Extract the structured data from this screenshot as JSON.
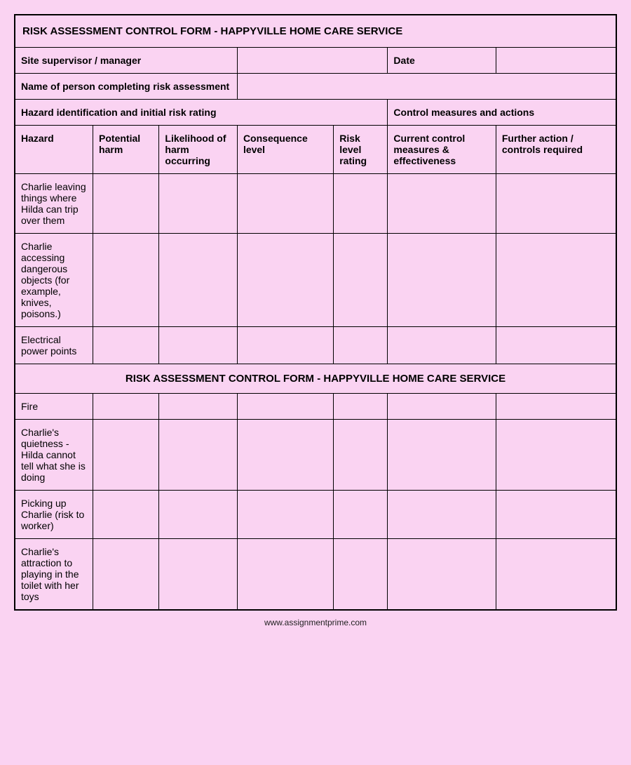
{
  "form_title": "RISK ASSESSMENT CONTROL FORM - HAPPYVILLE HOME CARE SERVICE",
  "fields": {
    "supervisor_label": "Site supervisor / manager",
    "supervisor_value": "",
    "date_label": "Date",
    "date_value": "",
    "completer_label": "Name of person completing risk assessment",
    "completer_value": ""
  },
  "section_headers": {
    "left": "Hazard identification and initial risk rating",
    "right": "Control measures and actions"
  },
  "columns": {
    "hazard": "Hazard",
    "potential_harm": "Potential harm",
    "likelihood": "Likelihood of harm occurring",
    "consequence": "Consequence level",
    "risk_level": "Risk level rating",
    "current_controls": "Current control measures & effectiveness",
    "further_action": "Further action / controls required"
  },
  "rows1": [
    {
      "hazard": "Charlie leaving things where Hilda can trip over them",
      "harm": "",
      "likelihood": "",
      "consequence": "",
      "risk": "",
      "current": "",
      "further": ""
    },
    {
      "hazard": "Charlie accessing dangerous objects (for example, knives, poisons.)",
      "harm": "",
      "likelihood": "",
      "consequence": "",
      "risk": "",
      "current": "",
      "further": ""
    },
    {
      "hazard": "Electrical power points",
      "harm": "",
      "likelihood": "",
      "consequence": "",
      "risk": "",
      "current": "",
      "further": ""
    }
  ],
  "mid_title": "RISK ASSESSMENT CONTROL FORM - HAPPYVILLE HOME CARE SERVICE",
  "rows2": [
    {
      "hazard": "Fire",
      "harm": "",
      "likelihood": "",
      "consequence": "",
      "risk": "",
      "current": "",
      "further": ""
    },
    {
      "hazard": "Charlie's quietness - Hilda cannot tell what she is doing",
      "harm": "",
      "likelihood": "",
      "consequence": "",
      "risk": "",
      "current": "",
      "further": ""
    },
    {
      "hazard": "Picking up Charlie (risk to worker)",
      "harm": "",
      "likelihood": "",
      "consequence": "",
      "risk": "",
      "current": "",
      "further": ""
    },
    {
      "hazard": "Charlie's attraction to playing in the toilet with her toys",
      "harm": "",
      "likelihood": "",
      "consequence": "",
      "risk": "",
      "current": "",
      "further": ""
    }
  ],
  "footer": "www.assignmentprime.com",
  "style": {
    "background_color": "#fad3f2",
    "border_color": "#000000",
    "font_family": "Arial",
    "title_fontsize": 15,
    "body_fontsize": 14,
    "footer_fontsize": 12
  }
}
